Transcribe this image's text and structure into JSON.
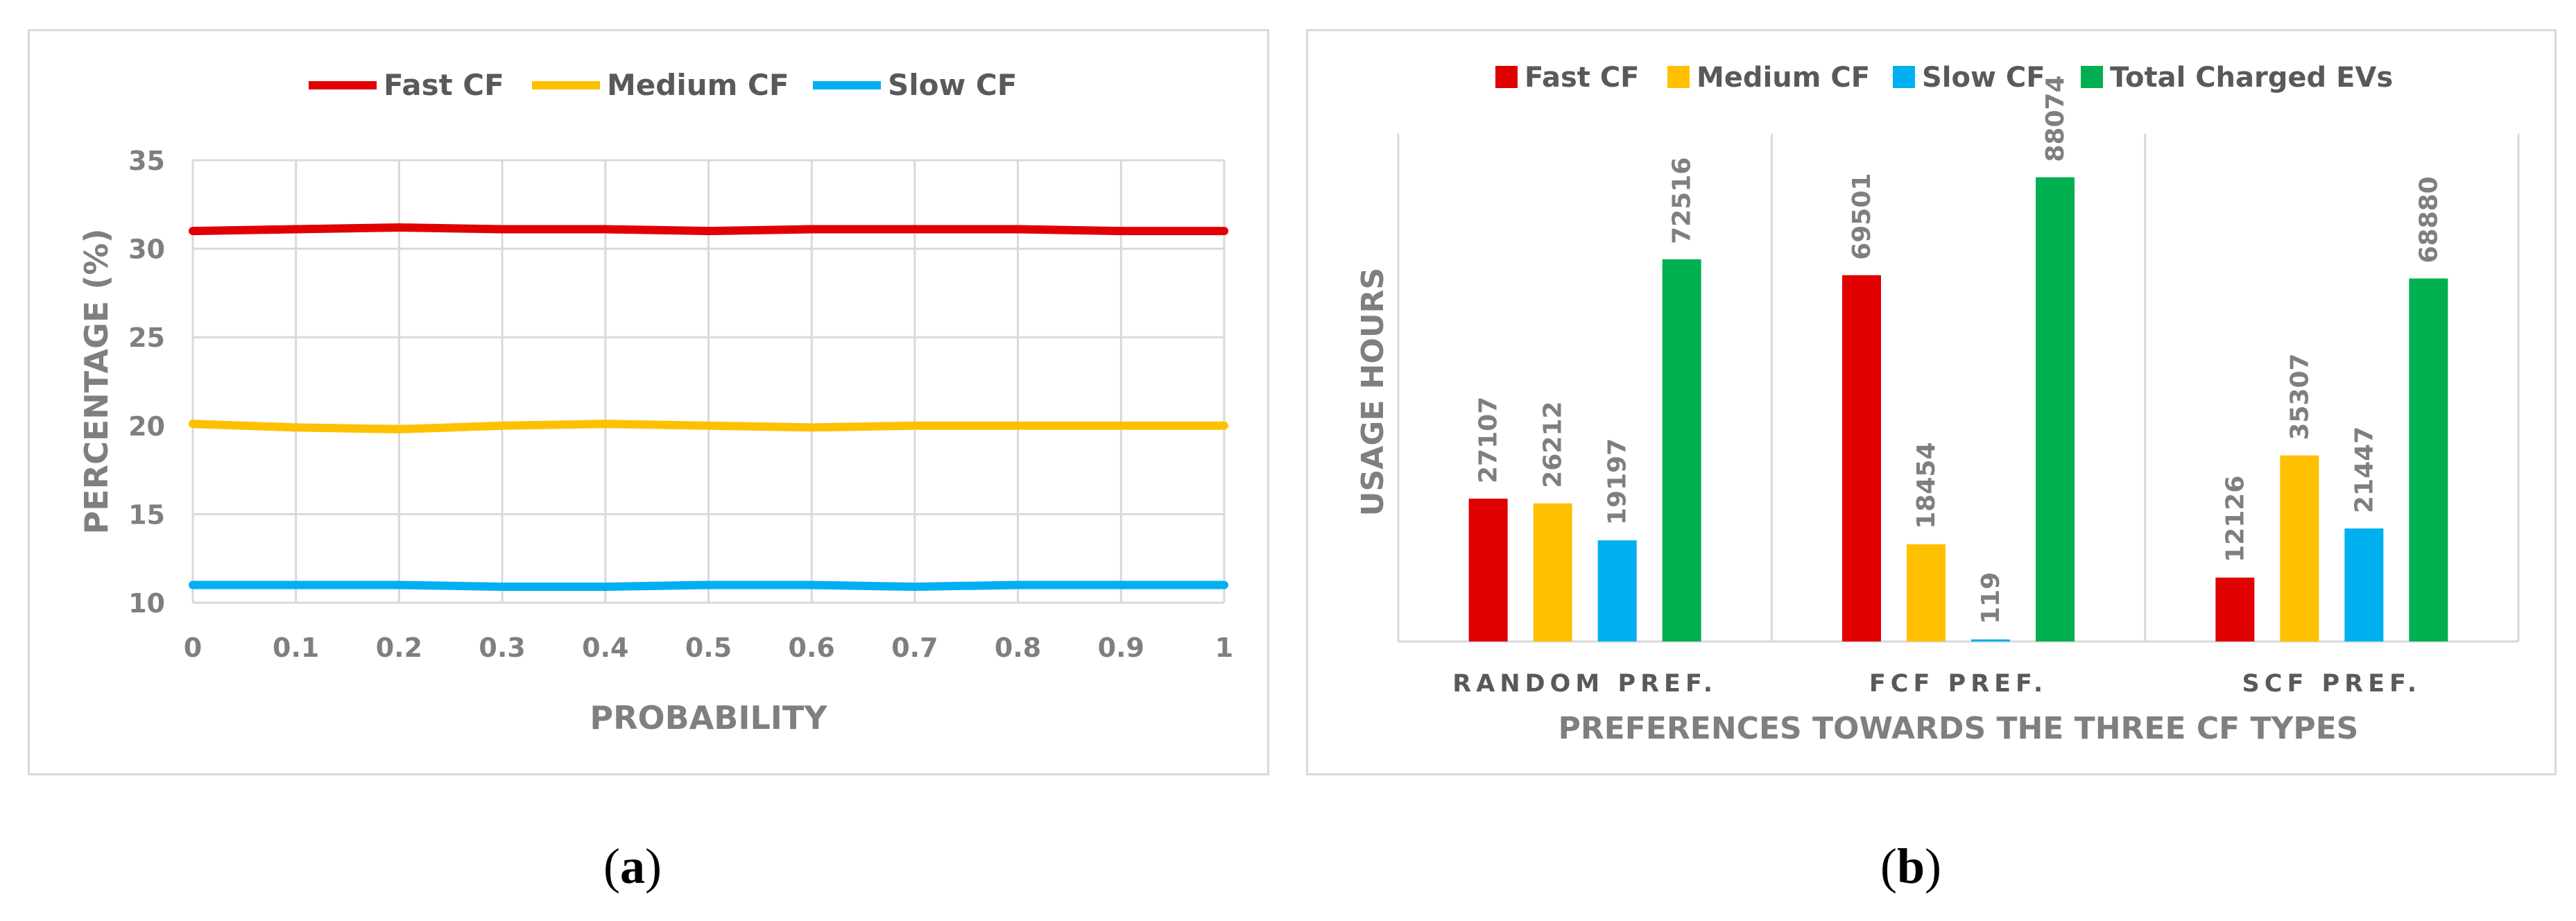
{
  "colors": {
    "fast": "#e00000",
    "medium": "#ffc000",
    "slow": "#00b0f0",
    "total": "#00b050",
    "grid": "#d9d9d9",
    "text": "#7f7f7f"
  },
  "captions": {
    "a": {
      "open": "(",
      "letter": "a",
      "close": ")"
    },
    "b": {
      "open": "(",
      "letter": "b",
      "close": ")"
    }
  },
  "chart_data": [
    {
      "id": "a",
      "type": "line",
      "title": "",
      "xlabel": "PROBABILITY",
      "ylabel": "PERCENTAGE (%)",
      "xlim": [
        0,
        1
      ],
      "ylim": [
        10,
        35
      ],
      "x_ticks": [
        "0",
        "0.1",
        "0.2",
        "0.3",
        "0.4",
        "0.5",
        "0.6",
        "0.7",
        "0.8",
        "0.9",
        "1"
      ],
      "y_ticks": [
        "10",
        "15",
        "20",
        "25",
        "30",
        "35"
      ],
      "grid": true,
      "legend_position": "top",
      "x": [
        0,
        0.1,
        0.2,
        0.3,
        0.4,
        0.5,
        0.6,
        0.7,
        0.8,
        0.9,
        1
      ],
      "series": [
        {
          "name": "Fast CF",
          "color": "#e00000",
          "values": [
            31.0,
            31.1,
            31.2,
            31.1,
            31.1,
            31.0,
            31.1,
            31.1,
            31.1,
            31.0,
            31.0
          ]
        },
        {
          "name": "Medium CF",
          "color": "#ffc000",
          "values": [
            20.1,
            19.9,
            19.8,
            20.0,
            20.1,
            20.0,
            19.9,
            20.0,
            20.0,
            20.0,
            20.0
          ]
        },
        {
          "name": "Slow CF",
          "color": "#00b0f0",
          "values": [
            11.0,
            11.0,
            11.0,
            10.9,
            10.9,
            11.0,
            11.0,
            10.9,
            11.0,
            11.0,
            11.0
          ]
        }
      ]
    },
    {
      "id": "b",
      "type": "bar",
      "title": "",
      "xlabel": "PREFERENCES TOWARDS THE THREE CF TYPES",
      "ylabel": "USAGE HOURS",
      "ylim": [
        0,
        100000
      ],
      "grid": false,
      "legend_position": "top",
      "categories": [
        "RANDOM PREF.",
        "FCF PREF.",
        "SCF PREF."
      ],
      "series": [
        {
          "name": "Fast CF",
          "color": "#e00000",
          "values": [
            27107,
            69501,
            12126
          ]
        },
        {
          "name": "Medium CF",
          "color": "#ffc000",
          "values": [
            26212,
            18454,
            35307
          ]
        },
        {
          "name": "Slow CF",
          "color": "#00b0f0",
          "values": [
            19197,
            119,
            21447
          ]
        },
        {
          "name": "Total Charged EVs",
          "color": "#00b050",
          "values": [
            72516,
            88074,
            68880
          ]
        }
      ]
    }
  ]
}
